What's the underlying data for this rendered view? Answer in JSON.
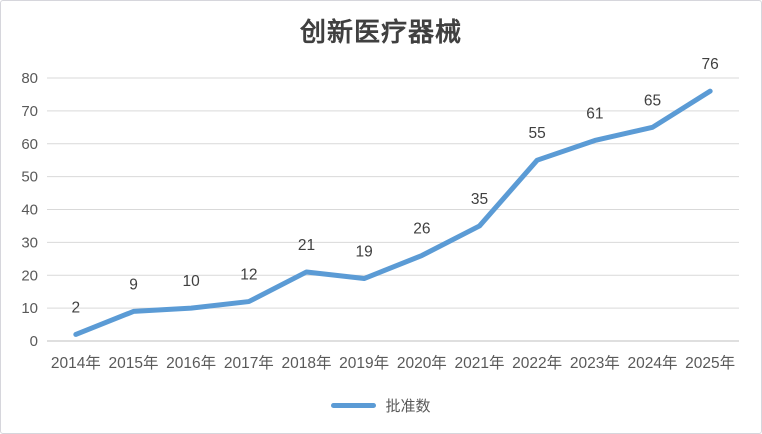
{
  "title": "创新医疗器械",
  "legend_label": "批准数",
  "colors": {
    "line": "#5B9BD5",
    "grid": "#D9D9D9",
    "axis": "#BFBFBF",
    "tick_text": "#595959",
    "data_label_text": "#404040",
    "title_text": "#404040"
  },
  "chart_data": {
    "type": "line",
    "title": "创新医疗器械",
    "categories": [
      "2014年",
      "2015年",
      "2016年",
      "2017年",
      "2018年",
      "2019年",
      "2020年",
      "2021年",
      "2022年",
      "2023年",
      "2024年",
      "2025年"
    ],
    "series": [
      {
        "name": "批准数",
        "values": [
          2,
          9,
          10,
          12,
          21,
          19,
          26,
          35,
          55,
          61,
          65,
          76
        ]
      }
    ],
    "xlabel": "",
    "ylabel": "",
    "ylim": [
      0,
      80
    ],
    "yticks": [
      0,
      10,
      20,
      30,
      40,
      50,
      60,
      70,
      80
    ],
    "grid": true,
    "data_labels": true,
    "legend_position": "bottom"
  }
}
